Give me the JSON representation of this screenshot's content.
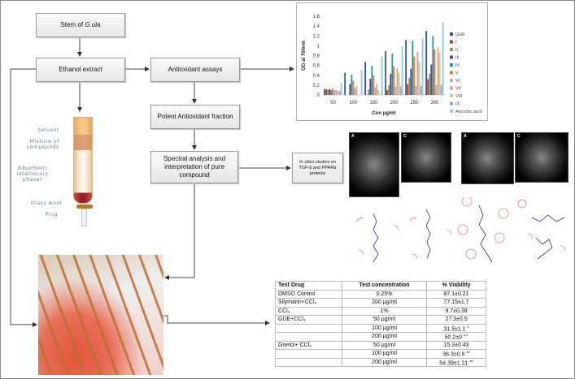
{
  "flow": {
    "stem": "Stem of ",
    "stem_italic": "G.ula",
    "ethanol": "Ethanol extract",
    "antioxidant": "Antioxidant assays",
    "potent": "Potent Antioxidant fraction",
    "spectral": "Spectral analysis and interpretation of pure compound",
    "insilico_italic": "In silico",
    "insilico_rest": " studies on TGF-β and PPARα proteins"
  },
  "column_labels": {
    "solvent": "Solvent",
    "mixture": "Mixture of compounds",
    "adsorbent": "Adsorbent (stationary phase)",
    "glasswool": "Glass wool",
    "plug": "Plug"
  },
  "docking_panels": [
    "A",
    "C",
    "A",
    "C"
  ],
  "chart_data": {
    "type": "bar",
    "xlabel": "Con  µg/ml",
    "ylabel": "OD at 700nm",
    "ylim": [
      0,
      1.6
    ],
    "yticks": [
      0,
      0.2,
      0.4,
      0.6,
      0.8,
      1,
      1.2,
      1.4,
      1.6
    ],
    "categories": [
      "50",
      "100",
      "150",
      "200",
      "250",
      "300"
    ],
    "legend_position": "right",
    "series": [
      {
        "name": "GUE",
        "color": "#2f5597",
        "values": [
          0.12,
          0.45,
          0.67,
          0.89,
          1.12,
          1.3
        ]
      },
      {
        "name": "I",
        "color": "#c0392b",
        "values": [
          0.12,
          0,
          0,
          0.1,
          0.22,
          0.32
        ]
      },
      {
        "name": "II",
        "color": "#7f9b3a",
        "values": [
          0.1,
          0,
          0.11,
          0.2,
          0.35,
          0.43
        ]
      },
      {
        "name": "III",
        "color": "#5b3f8c",
        "values": [
          0.12,
          0.22,
          0.33,
          0.43,
          0.53,
          0.62
        ]
      },
      {
        "name": "IV",
        "color": "#2196a8",
        "values": [
          0.1,
          0.41,
          0.59,
          0.84,
          1.1,
          1.2
        ]
      },
      {
        "name": "V",
        "color": "#e8782a",
        "values": [
          0.14,
          0.29,
          0.4,
          0.58,
          0.78,
          0.93
        ]
      },
      {
        "name": "VI",
        "color": "#9fb6dc",
        "values": [
          0.1,
          0.14,
          0.15,
          0.17,
          0.18,
          0.2
        ]
      },
      {
        "name": "VII",
        "color": "#e39a9a",
        "values": [
          0.1,
          0.18,
          0.23,
          0.54,
          0.88,
          0.97
        ]
      },
      {
        "name": "VIII",
        "color": "#bcd48a",
        "values": [
          0.08,
          0,
          0.1,
          0.45,
          0.67,
          0.86
        ]
      },
      {
        "name": "IX",
        "color": "#a99ac9",
        "values": [
          0.08,
          0,
          0,
          0.17,
          0.18,
          0.2
        ]
      },
      {
        "name": "Ascorbic acid",
        "color": "#8ccbe0",
        "values": [
          0.25,
          0.51,
          0.78,
          0.99,
          1.15,
          1.48
        ]
      }
    ]
  },
  "table": {
    "headers": [
      "Test Drug",
      "Test concentration",
      "% Viability"
    ],
    "rows": [
      [
        "DMSO Control",
        "0.25%",
        "97.1±0.21",
        ""
      ],
      [
        "Silymarin+CCl₄",
        "200 µg/ml",
        "77.15±1.7",
        ""
      ],
      [
        "CCl₄",
        "1%",
        "9.7±0.38",
        ""
      ],
      [
        "GUE+CCl₄",
        "50 µg/ml",
        "27.3±0.5",
        ""
      ],
      [
        "",
        "100 µg/ml",
        "31.5±1.1",
        "b"
      ],
      [
        "",
        "200 µg/ml",
        "50.2±0",
        "a b"
      ],
      [
        "Gnetol+ CCl₄",
        "50 µg/ml",
        "15.3±0.43",
        ""
      ],
      [
        "",
        "100 µg/ml",
        "36.3±0.8",
        "ab"
      ],
      [
        "",
        "200 µg/ml",
        "54.39±1.21",
        "ab"
      ]
    ]
  }
}
